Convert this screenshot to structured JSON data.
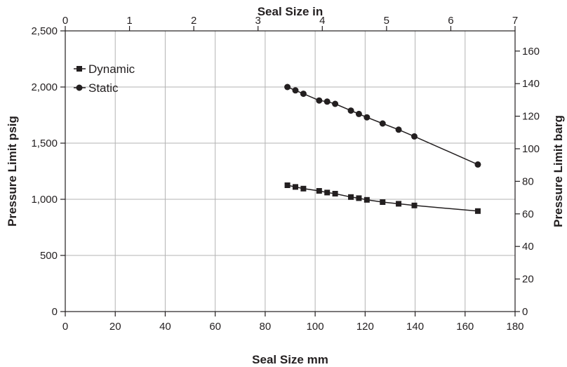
{
  "chart_data": {
    "type": "line",
    "title": "",
    "xlabel": "Seal Size mm",
    "x2label": "Seal Size in",
    "ylabel": "Pressure Limit psig",
    "y2label": "Pressure Limit barg",
    "xlim": [
      0,
      180
    ],
    "x2lim": [
      0,
      7
    ],
    "ylim": [
      0,
      2500
    ],
    "y2lim": [
      0,
      172.4
    ],
    "grid": true,
    "legend_position": "top-left",
    "x_ticks": [
      0,
      20,
      40,
      60,
      80,
      100,
      120,
      140,
      160,
      180
    ],
    "x_tick_labels": [
      "0",
      "20",
      "40",
      "60",
      "80",
      "100",
      "120",
      "140",
      "160",
      "180"
    ],
    "x2_ticks": [
      0,
      1,
      2,
      3,
      4,
      5,
      6,
      7
    ],
    "x2_tick_labels": [
      "0",
      "1",
      "2",
      "3",
      "4",
      "5",
      "6",
      "7"
    ],
    "y_ticks": [
      0,
      500,
      1000,
      1500,
      2000,
      2500
    ],
    "y_tick_labels": [
      "0",
      "500",
      "1,000",
      "1,500",
      "2,000",
      "2,500"
    ],
    "y2_ticks": [
      0,
      20,
      40,
      60,
      80,
      100,
      120,
      140,
      160
    ],
    "y2_tick_labels": [
      "0",
      "20",
      "40",
      "60",
      "80",
      "100",
      "120",
      "140",
      "160"
    ],
    "series": [
      {
        "name": "Dynamic",
        "marker": "square",
        "color": "#231f20",
        "x": [
          88.9,
          92.1,
          95.3,
          101.6,
          104.8,
          108.0,
          114.3,
          117.5,
          120.7,
          127.0,
          133.4,
          139.7,
          165.1
        ],
        "y": [
          1125,
          1110,
          1095,
          1075,
          1060,
          1050,
          1020,
          1010,
          995,
          975,
          960,
          945,
          895
        ]
      },
      {
        "name": "Static",
        "marker": "circle",
        "color": "#231f20",
        "x": [
          88.9,
          92.1,
          95.3,
          101.6,
          104.8,
          108.0,
          114.3,
          117.5,
          120.7,
          127.0,
          133.4,
          139.7,
          165.1
        ],
        "y": [
          2000,
          1970,
          1940,
          1880,
          1870,
          1850,
          1790,
          1760,
          1730,
          1675,
          1620,
          1560,
          1310
        ]
      }
    ]
  }
}
